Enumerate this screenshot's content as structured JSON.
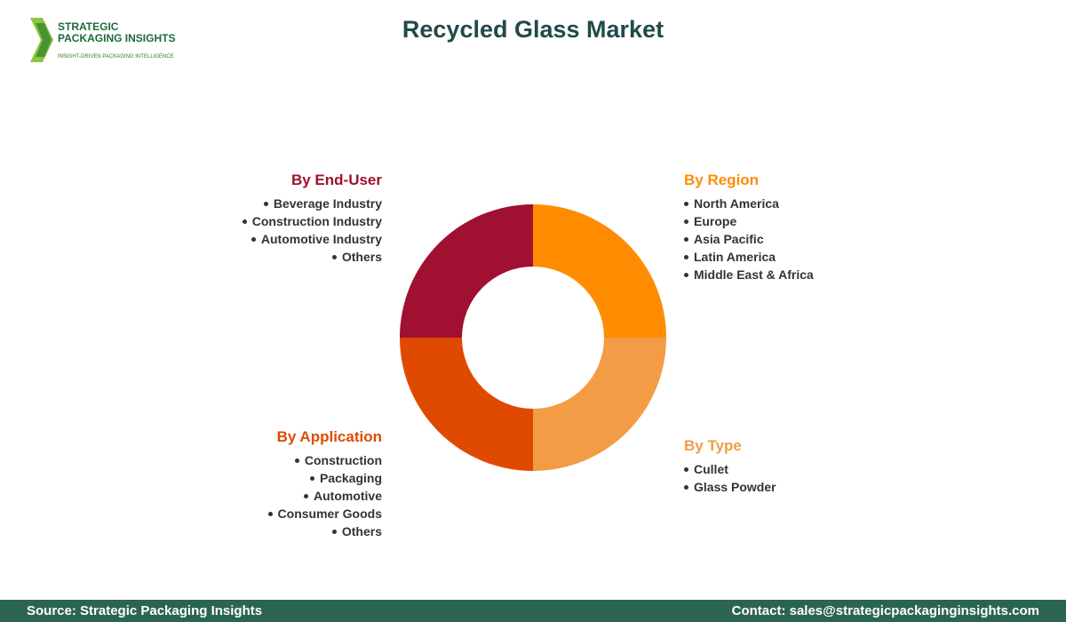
{
  "logo": {
    "line1": "STRATEGIC",
    "line2": "PACKAGING INSIGHTS",
    "tagline": "INSIGHT-DRIVEN PACKAGING INTELLIGENCE"
  },
  "title": "Recycled Glass Market",
  "segments": [
    {
      "heading": "By End-User",
      "items": [
        "Beverage Industry",
        "Construction Industry",
        "Automotive Industry",
        "Others"
      ]
    },
    {
      "heading": "By Region",
      "items": [
        "North America",
        "Europe",
        "Asia Pacific",
        "Latin America",
        "Middle East & Africa"
      ]
    },
    {
      "heading": "By Application",
      "items": [
        "Construction",
        "Packaging",
        "Automotive",
        "Consumer Goods",
        "Others"
      ]
    },
    {
      "heading": "By Type",
      "items": [
        "Cullet",
        "Glass Powder"
      ]
    }
  ],
  "footer": {
    "source": "Source: Strategic Packaging Insights",
    "contact": "Contact: sales@strategicpackaginginsights.com"
  }
}
